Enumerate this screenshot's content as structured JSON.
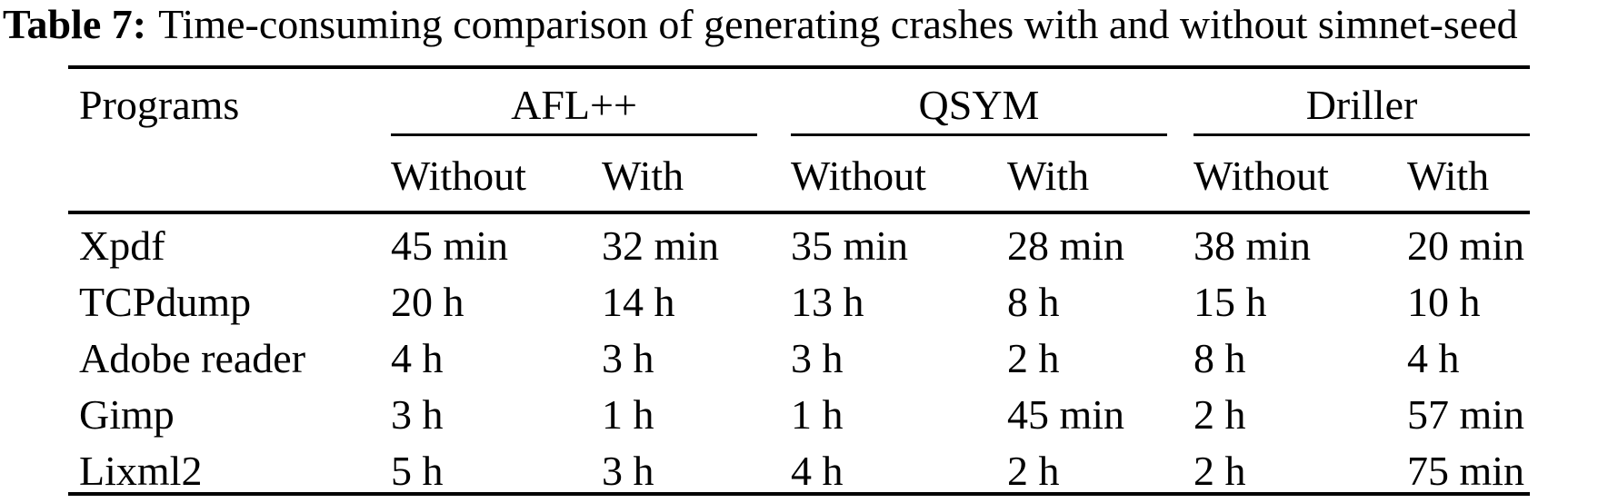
{
  "caption": {
    "label": "Table 7:",
    "text": "Time-consuming comparison of generating crashes with and without simnet-seed"
  },
  "table": {
    "programs_header": "Programs",
    "groups": [
      "AFL++",
      "QSYM",
      "Driller"
    ],
    "subheaders": [
      "Without",
      "With",
      "Without",
      "With",
      "Without",
      "With"
    ],
    "rows": [
      {
        "program": "Xpdf",
        "values": [
          "45 min",
          "32 min",
          "35 min",
          "28 min",
          "38 min",
          "20 min"
        ]
      },
      {
        "program": "TCPdump",
        "values": [
          "20 h",
          "14 h",
          "13 h",
          "8 h",
          "15 h",
          "10 h"
        ]
      },
      {
        "program": "Adobe reader",
        "values": [
          "4 h",
          "3 h",
          "3 h",
          "2 h",
          "8 h",
          "4 h"
        ]
      },
      {
        "program": "Gimp",
        "values": [
          "3 h",
          "1 h",
          "1 h",
          "45 min",
          "2 h",
          "57 min"
        ]
      },
      {
        "program": "Lixml2",
        "values": [
          "5 h",
          "3 h",
          "4 h",
          "2 h",
          "2 h",
          "75 min"
        ]
      }
    ]
  },
  "chart_data": {
    "type": "table",
    "title": "Table 7: Time-consuming comparison of generating crashes with and without simnet-seed",
    "column_groups": [
      "AFL++",
      "QSYM",
      "Driller"
    ],
    "columns": [
      "Programs",
      "AFL++ Without",
      "AFL++ With",
      "QSYM Without",
      "QSYM With",
      "Driller Without",
      "Driller With"
    ],
    "rows": [
      [
        "Xpdf",
        "45 min",
        "32 min",
        "35 min",
        "28 min",
        "38 min",
        "20 min"
      ],
      [
        "TCPdump",
        "20 h",
        "14 h",
        "13 h",
        "8 h",
        "15 h",
        "10 h"
      ],
      [
        "Adobe reader",
        "4 h",
        "3 h",
        "3 h",
        "2 h",
        "8 h",
        "4 h"
      ],
      [
        "Gimp",
        "3 h",
        "1 h",
        "1 h",
        "45 min",
        "2 h",
        "57 min"
      ],
      [
        "Lixml2",
        "5 h",
        "3 h",
        "4 h",
        "2 h",
        "2 h",
        "75 min"
      ]
    ]
  },
  "colors": {
    "text": "#000000",
    "background": "#ffffff",
    "rules": "#000000"
  }
}
